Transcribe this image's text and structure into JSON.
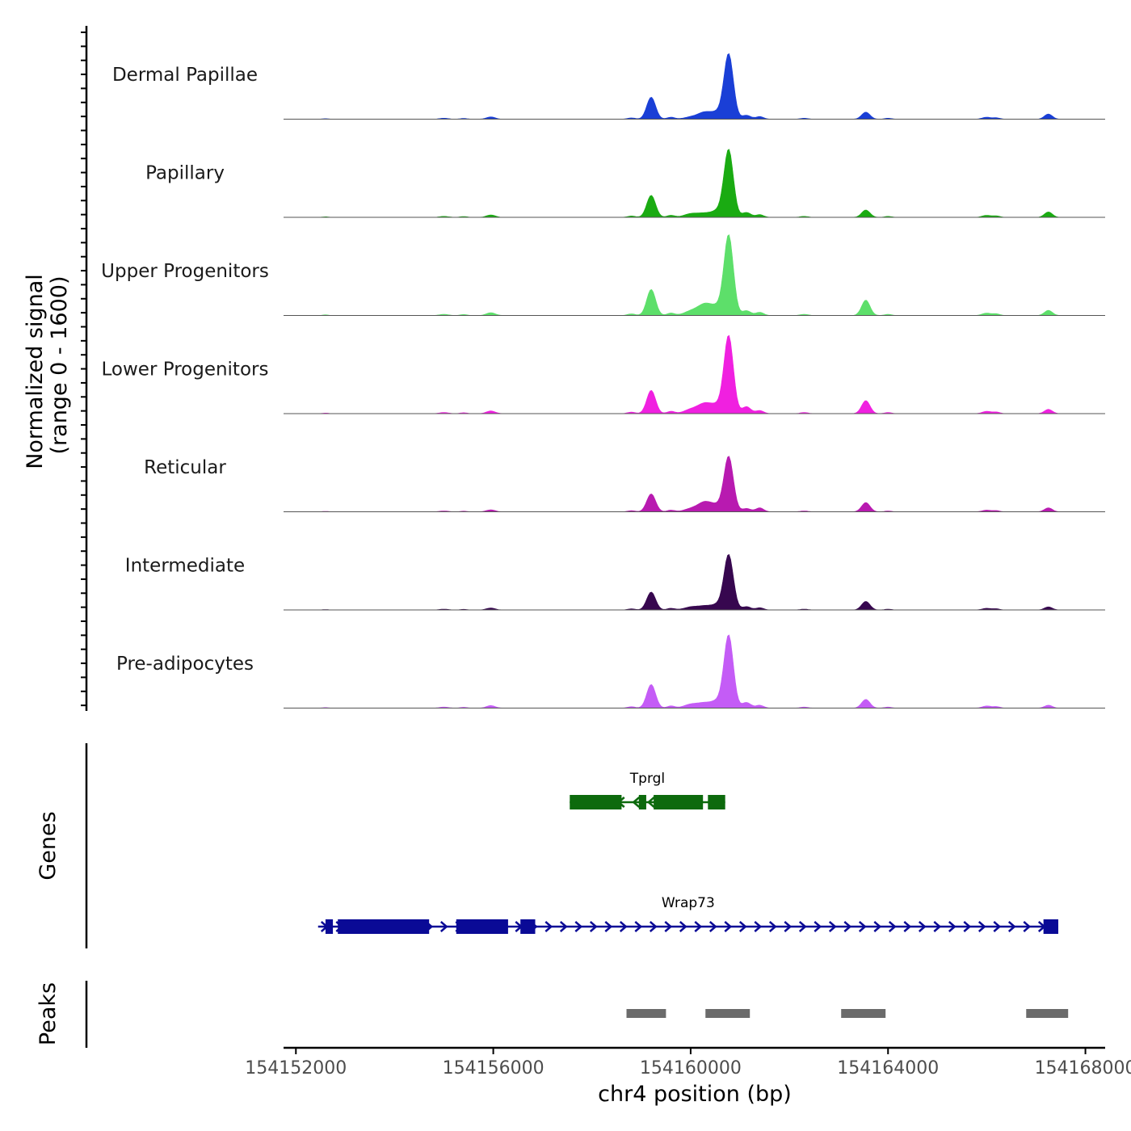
{
  "chart_data": {
    "type": "area",
    "title": "",
    "xlabel": "chr4 position (bp)",
    "ylabel_line1": "Normalized signal",
    "ylabel_line2": "(range 0 - 1600)",
    "ylim": [
      0,
      1600
    ],
    "xlim": [
      154151750,
      154168400
    ],
    "x_ticks": [
      {
        "value": 154152000,
        "label": "154152000"
      },
      {
        "value": 154156000,
        "label": "154156000"
      },
      {
        "value": 154160000,
        "label": "154160000"
      },
      {
        "value": 154164000,
        "label": "154164000"
      },
      {
        "value": 154168000,
        "label": "154168000"
      }
    ],
    "peak_profile": [
      {
        "center": 154152600,
        "width": 60,
        "weight": 0.008
      },
      {
        "center": 154155000,
        "width": 90,
        "weight": 0.015
      },
      {
        "center": 154155400,
        "width": 70,
        "weight": 0.012
      },
      {
        "center": 154155950,
        "width": 90,
        "weight": 0.035
      },
      {
        "center": 154158800,
        "width": 80,
        "weight": 0.02
      },
      {
        "center": 154159200,
        "width": 90,
        "weight": 0.25
      },
      {
        "center": 154159600,
        "width": 80,
        "weight": 0.03
      },
      {
        "center": 154160000,
        "width": 140,
        "weight": 0.05
      },
      {
        "center": 154160300,
        "width": 150,
        "weight": 0.12
      },
      {
        "center": 154160550,
        "width": 110,
        "weight": 0.08
      },
      {
        "center": 154160770,
        "width": 95,
        "weight": 1.0
      },
      {
        "center": 154161130,
        "width": 90,
        "weight": 0.06
      },
      {
        "center": 154161400,
        "width": 80,
        "weight": 0.04
      },
      {
        "center": 154162300,
        "width": 80,
        "weight": 0.015
      },
      {
        "center": 154163550,
        "width": 85,
        "weight": 0.12
      },
      {
        "center": 154164000,
        "width": 70,
        "weight": 0.015
      },
      {
        "center": 154166000,
        "width": 90,
        "weight": 0.03
      },
      {
        "center": 154166200,
        "width": 70,
        "weight": 0.02
      },
      {
        "center": 154167250,
        "width": 80,
        "weight": 0.08
      }
    ],
    "series": [
      {
        "name": "Dermal Papillae",
        "color": "#1a3fd6",
        "peak_max": 1300,
        "scale": {
          "154159200": 1.35,
          "154160300": 0.9,
          "154163550": 0.9,
          "154167250": 1.0,
          "154160000": 0.6
        }
      },
      {
        "name": "Papillary",
        "color": "#1aab12",
        "peak_max": 1350,
        "scale": {
          "154159200": 1.3,
          "154160300": 0.5,
          "154163550": 0.9,
          "154167250": 1.0,
          "154161130": 1.2
        }
      },
      {
        "name": "Upper Progenitors",
        "color": "#5ddf6a",
        "peak_max": 1600,
        "scale": {
          "154159200": 1.3,
          "154160300": 1.2,
          "154163550": 1.6,
          "154167250": 0.8
        }
      },
      {
        "name": "Lower Progenitors",
        "color": "#f020e0",
        "peak_max": 1550,
        "scale": {
          "154159200": 1.2,
          "154160300": 1.1,
          "154163550": 1.4,
          "154167250": 0.7,
          "154161130": 1.5
        }
      },
      {
        "name": "Reticular",
        "color": "#b81ab0",
        "peak_max": 1100,
        "scale": {
          "154159200": 1.3,
          "154160300": 1.5,
          "154163550": 1.4,
          "154167250": 0.9,
          "154161400": 1.8
        }
      },
      {
        "name": "Intermediate",
        "color": "#37074f",
        "peak_max": 1100,
        "scale": {
          "154159200": 1.3,
          "154160300": 0.6,
          "154163550": 1.3,
          "154167250": 0.7
        }
      },
      {
        "name": "Pre-adipocytes",
        "color": "#c45cf6",
        "peak_max": 1450,
        "scale": {
          "154159200": 1.3,
          "154160300": 0.6,
          "154163550": 1.0,
          "154167250": 0.5,
          "154161130": 1.3
        }
      }
    ],
    "genes": [
      {
        "name": "Tprgl",
        "color": "#0d6a0d",
        "strand": "-",
        "start": 154157550,
        "end": 154160700,
        "exons": [
          [
            154157550,
            154158600
          ],
          [
            154158950,
            154159100
          ],
          [
            154159250,
            154160250
          ],
          [
            154160350,
            154160700
          ]
        ]
      },
      {
        "name": "Wrap73",
        "color": "#0a0a96",
        "strand": "+",
        "start": 154152450,
        "end": 154167450,
        "exons": [
          [
            154152600,
            154152750
          ],
          [
            154152850,
            154154700
          ],
          [
            154155250,
            154156300
          ],
          [
            154156550,
            154156850
          ],
          [
            154167150,
            154167450
          ]
        ]
      }
    ],
    "peaks": [
      [
        154158700,
        154159500
      ],
      [
        154160300,
        154161200
      ],
      [
        154163050,
        154163950
      ],
      [
        154166800,
        154167650
      ]
    ],
    "panel_labels": {
      "genes": "Genes",
      "peaks": "Peaks"
    }
  }
}
